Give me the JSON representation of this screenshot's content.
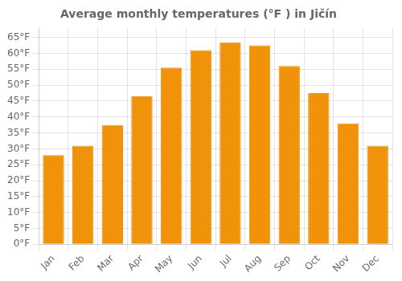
{
  "chart_data": {
    "type": "bar",
    "title": "Average monthly temperatures (°F ) in Jičín",
    "categories": [
      "Jan",
      "Feb",
      "Mar",
      "Apr",
      "May",
      "Jun",
      "Jul",
      "Aug",
      "Sep",
      "Oct",
      "Nov",
      "Dec"
    ],
    "values": [
      28,
      31,
      37.5,
      46.5,
      55.5,
      61,
      63.5,
      62.5,
      56,
      47.5,
      38,
      31
    ],
    "color": "#F0920A",
    "ylim": [
      0,
      68
    ],
    "yticks": [
      {
        "value": 0,
        "label": "0°F"
      },
      {
        "value": 5,
        "label": "5°F"
      },
      {
        "value": 10,
        "label": "10°F"
      },
      {
        "value": 15,
        "label": "15°F"
      },
      {
        "value": 20,
        "label": "20°F"
      },
      {
        "value": 25,
        "label": "25°F"
      },
      {
        "value": 30,
        "label": "30°F"
      },
      {
        "value": 35,
        "label": "35°F"
      },
      {
        "value": 40,
        "label": "40°F"
      },
      {
        "value": 45,
        "label": "45°F"
      },
      {
        "value": 50,
        "label": "50°F"
      },
      {
        "value": 55,
        "label": "55°F"
      },
      {
        "value": 60,
        "label": "60°F"
      },
      {
        "value": 65,
        "label": "65°F"
      }
    ],
    "grid": true
  }
}
